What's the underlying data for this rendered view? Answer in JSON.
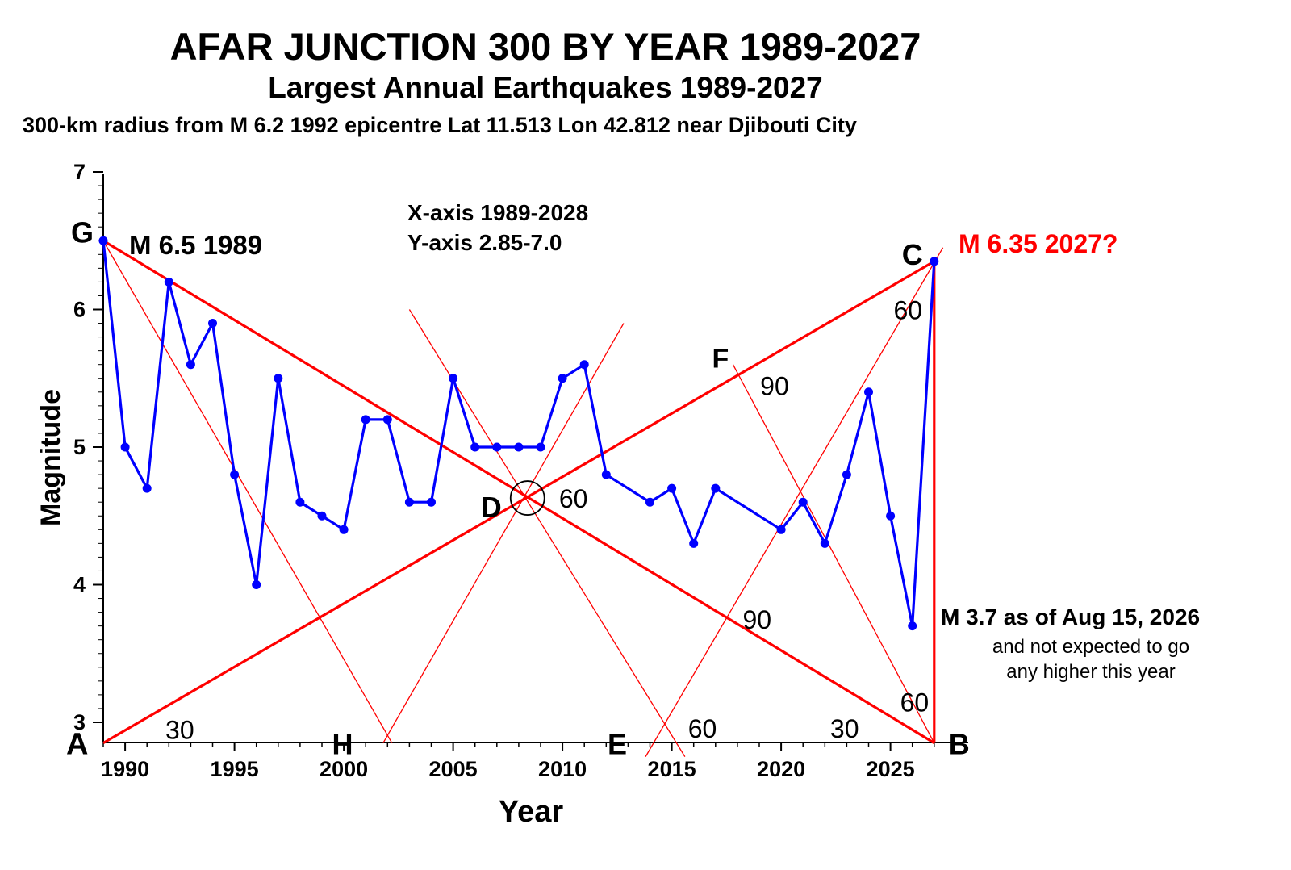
{
  "header": {
    "title": "AFAR JUNCTION 300 BY YEAR 1989-2027",
    "subtitle": "Largest Annual Earthquakes 1989-2027",
    "subtitle2": "300-km radius from M 6.2 1992 epicentre Lat 11.513 Lon 42.812 near Djibouti City"
  },
  "chart_data": {
    "type": "line",
    "xlabel": "Year",
    "ylabel": "Magnitude",
    "xlim": [
      1989,
      2028
    ],
    "ylim": [
      2.85,
      7.0
    ],
    "x_ticks": [
      1990,
      1995,
      2000,
      2005,
      2010,
      2015,
      2020,
      2025
    ],
    "y_ticks": [
      3,
      4,
      5,
      6,
      7
    ],
    "grid": false,
    "legend": "none",
    "series": [
      {
        "color": "#0000ff",
        "points": [
          [
            1989,
            6.5
          ],
          [
            1990,
            5.0
          ],
          [
            1991,
            4.7
          ],
          [
            1992,
            6.2
          ],
          [
            1993,
            5.6
          ],
          [
            1994,
            5.9
          ],
          [
            1995,
            4.8
          ],
          [
            1996,
            4.0
          ],
          [
            1997,
            5.5
          ],
          [
            1998,
            4.6
          ],
          [
            1999,
            4.5
          ],
          [
            2000,
            4.4
          ],
          [
            2001,
            5.2
          ],
          [
            2002,
            5.2
          ],
          [
            2003,
            4.6
          ],
          [
            2004,
            4.6
          ],
          [
            2005,
            5.5
          ],
          [
            2006,
            5.0
          ],
          [
            2007,
            5.0
          ],
          [
            2008,
            5.0
          ],
          [
            2009,
            5.0
          ],
          [
            2010,
            5.5
          ],
          [
            2011,
            5.6
          ],
          [
            2012,
            4.8
          ],
          [
            2014,
            4.6
          ],
          [
            2015,
            4.7
          ],
          [
            2016,
            4.3
          ],
          [
            2017,
            4.7
          ],
          [
            2020,
            4.4
          ],
          [
            2021,
            4.6
          ],
          [
            2022,
            4.3
          ],
          [
            2023,
            4.8
          ],
          [
            2024,
            5.4
          ],
          [
            2025,
            4.5
          ],
          [
            2026,
            3.7
          ],
          [
            2027,
            6.35
          ]
        ]
      }
    ],
    "thick_lines": [
      {
        "from": [
          1989,
          6.5
        ],
        "to": [
          2027,
          2.85
        ]
      },
      {
        "from": [
          1989,
          2.85
        ],
        "to": [
          2027,
          6.35
        ]
      },
      {
        "from": [
          2027,
          2.85
        ],
        "to": [
          2027,
          6.35
        ]
      }
    ],
    "thin_lines": [
      {
        "from": [
          1989,
          6.5
        ],
        "to": [
          2002.2,
          2.85
        ]
      },
      {
        "from": [
          2001.8,
          2.85
        ],
        "to": [
          2012.8,
          5.9
        ]
      },
      {
        "from": [
          2003,
          6.0
        ],
        "to": [
          2015.6,
          2.75
        ]
      },
      {
        "from": [
          2013.8,
          2.75
        ],
        "to": [
          2027.4,
          6.45
        ]
      },
      {
        "from": [
          2017.8,
          5.6
        ],
        "to": [
          2027,
          2.85
        ]
      }
    ],
    "marker_circle": [
      2008.4,
      4.63
    ],
    "annotations": {
      "points": [
        {
          "label": "G",
          "at": [
            1989,
            6.5
          ]
        },
        {
          "label": "C",
          "at": [
            2027,
            6.35
          ]
        },
        {
          "label": "A",
          "at": [
            1989,
            2.85
          ]
        },
        {
          "label": "B",
          "at": [
            2027,
            2.85
          ]
        },
        {
          "label": "D",
          "at": [
            2008.4,
            4.63
          ]
        },
        {
          "label": "F",
          "at": [
            2017.8,
            5.6
          ]
        },
        {
          "label": "H",
          "at": [
            2000.2,
            2.85
          ]
        },
        {
          "label": "E",
          "at": [
            2012.8,
            2.85
          ]
        }
      ],
      "angles": [
        {
          "label": "30",
          "at": [
            1992.5,
            2.95
          ]
        },
        {
          "label": "60",
          "at": [
            2010.5,
            4.63
          ]
        },
        {
          "label": "90",
          "at": [
            2019.7,
            5.45
          ]
        },
        {
          "label": "60",
          "at": [
            2025.8,
            6.0
          ]
        },
        {
          "label": "90",
          "at": [
            2018.9,
            3.75
          ]
        },
        {
          "label": "60",
          "at": [
            2026.1,
            3.15
          ]
        },
        {
          "label": "60",
          "at": [
            2016.4,
            2.96
          ]
        },
        {
          "label": "30",
          "at": [
            2022.9,
            2.96
          ]
        }
      ],
      "texts": {
        "axis_note_1": "X-axis 1989-2028",
        "axis_note_2": "Y-axis 2.85-7.0",
        "m_1989": "M 6.5 1989",
        "m_2027": "M 6.35 2027?",
        "m_2026": "M 3.7 as of Aug 15, 2026",
        "m_2026_note_1": "and not expected to go",
        "m_2026_note_2": "any higher this year"
      }
    }
  }
}
